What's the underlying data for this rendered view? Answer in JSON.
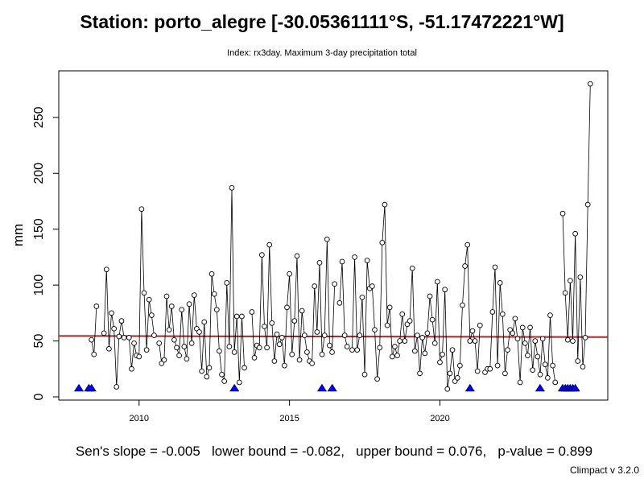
{
  "title": "Station: porto_alegre [-30.05361111°S, -51.17472221°W]",
  "subtitle": "Index: rx3day. Maximum 3-day precipitation total",
  "stats": {
    "slope": "Sen's slope = -0.005",
    "lower": "lower bound = -0.082,",
    "upper": "upper bound = 0.076,",
    "pvalue": "p-value = 0.899"
  },
  "credit": "Climpact v 3.2.0",
  "colors": {
    "line": "#000000",
    "trend": "#B22222",
    "missing": "#0000FF"
  },
  "chart_data": {
    "type": "line",
    "ylabel": "mm",
    "xlabel": "",
    "xlim": [
      2007.33,
      2025.58
    ],
    "ylim": [
      0,
      285
    ],
    "x_ticks": [
      2010,
      2015,
      2020
    ],
    "y_ticks": [
      0,
      50,
      100,
      150,
      200,
      250
    ],
    "start": 2008.0,
    "step": 0.08333,
    "values": [
      null,
      null,
      null,
      null,
      null,
      51,
      38,
      81,
      null,
      null,
      57,
      114,
      43,
      75,
      61,
      9,
      54,
      68,
      53,
      null,
      53,
      25,
      48,
      37,
      36,
      168,
      93,
      42,
      87,
      73,
      55,
      null,
      48,
      30,
      33,
      90,
      60,
      81,
      51,
      44,
      37,
      78,
      45,
      34,
      83,
      48,
      91,
      61,
      58,
      23,
      67,
      18,
      26,
      110,
      92,
      78,
      41,
      20,
      14,
      102,
      45,
      187,
      40,
      72,
      13,
      72,
      26,
      null,
      null,
      76,
      35,
      46,
      44,
      127,
      63,
      44,
      136,
      66,
      32,
      56,
      47,
      53,
      28,
      80,
      110,
      38,
      68,
      126,
      33,
      77,
      55,
      40,
      32,
      30,
      99,
      58,
      120,
      38,
      55,
      141,
      46,
      40,
      101,
      null,
      84,
      121,
      55,
      45,
      null,
      42,
      125,
      42,
      55,
      89,
      20,
      122,
      97,
      99,
      60,
      16,
      44,
      138,
      172,
      64,
      80,
      36,
      45,
      37,
      50,
      74,
      50,
      65,
      68,
      115,
      41,
      55,
      21,
      53,
      39,
      57,
      90,
      69,
      48,
      103,
      31,
      38,
      96,
      7,
      21,
      42,
      14,
      17,
      28,
      82,
      117,
      136,
      50,
      59,
      50,
      23,
      64,
      null,
      22,
      25,
      25,
      76,
      116,
      28,
      102,
      74,
      21,
      42,
      60,
      57,
      70,
      52,
      13,
      62,
      48,
      37,
      62,
      24,
      50,
      36,
      20,
      52,
      29,
      17,
      73,
      28,
      13,
      null,
      null,
      164,
      93,
      51,
      104,
      50,
      146,
      32,
      107,
      27,
      53,
      172,
      280
    ],
    "missing_markers_x": [
      2008.0,
      2008.33,
      2008.42,
      2013.17,
      2016.08,
      2016.42,
      2021.0,
      2023.33,
      2024.08,
      2024.17,
      2024.25,
      2024.33,
      2024.42,
      2024.5
    ],
    "trend_line": {
      "y_start": 54.5,
      "y_end": 53.5
    }
  }
}
